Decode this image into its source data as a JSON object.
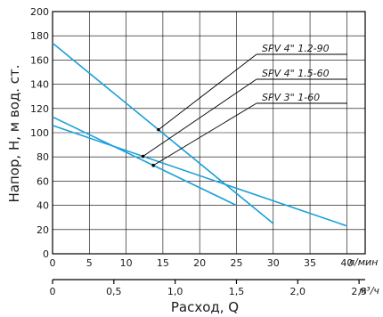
{
  "chart_data": {
    "type": "line",
    "ylabel": "Напор, Н, м вод. ст.",
    "xlabel": "Расход, Q",
    "x_unit_primary": "л/мин",
    "x_unit_secondary": "м³/ч",
    "x_ticks_primary": [
      "0",
      "5",
      "10",
      "15",
      "20",
      "25",
      "30",
      "35",
      "40"
    ],
    "x_ticks_secondary": [
      "0",
      "0,5",
      "1,0",
      "1,5",
      "2,0",
      "2,5"
    ],
    "y_ticks": [
      "0",
      "20",
      "40",
      "60",
      "80",
      "100",
      "120",
      "140",
      "160",
      "180",
      "200"
    ],
    "xlim": [
      0,
      42.5
    ],
    "ylim": [
      0,
      200
    ],
    "grid": true,
    "curve_color": "#1aa0d8",
    "series": [
      {
        "name": "SPV 4\" 1.2-90",
        "x": [
          0,
          30
        ],
        "y": [
          174,
          25
        ],
        "pointer_x": 14.4
      },
      {
        "name": "SPV 4\" 1.5-60",
        "x": [
          0,
          40
        ],
        "y": [
          106,
          23
        ],
        "pointer_x": 12.3
      },
      {
        "name": "SPV 3\" 1-60",
        "x": [
          0,
          25
        ],
        "y": [
          113,
          40
        ],
        "pointer_x": 13.7
      }
    ]
  }
}
